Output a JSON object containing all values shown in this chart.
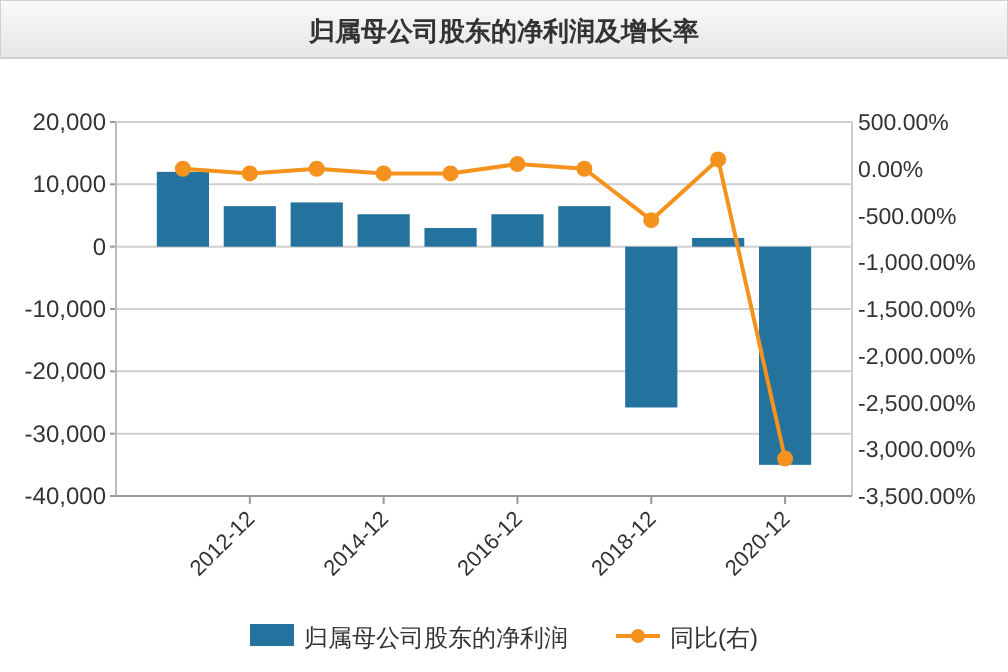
{
  "chart_data": {
    "type": "bar",
    "title": "归属母公司股东的净利润及增长率",
    "categories": [
      null,
      "2012-12",
      null,
      "2014-12",
      null,
      "2016-12",
      null,
      "2018-12",
      null,
      "2020-12"
    ],
    "series": [
      {
        "name": "归属母公司股东的净利润",
        "color": "#24739f",
        "values": [
          12000,
          6500,
          7100,
          5200,
          3000,
          5200,
          6500,
          -25800,
          1400,
          -35000
        ]
      },
      {
        "name": "同比(右)",
        "type": "line",
        "axis": "y2",
        "color": "#f5921e",
        "values": [
          0,
          -50,
          0,
          -50,
          -50,
          50,
          0,
          -550,
          100,
          -3100
        ]
      }
    ],
    "ylim": [
      -40000,
      20000
    ],
    "yticks": [
      {
        "value": 20000,
        "label": "20,000"
      },
      {
        "value": 10000,
        "label": "10,000"
      },
      0,
      {
        "value": -10000,
        "label": "-10,000"
      },
      {
        "value": -20000,
        "label": "-20,000"
      },
      {
        "value": -30000,
        "label": "-30,000"
      },
      {
        "value": -40000,
        "label": "-40,000"
      }
    ],
    "y2lim": [
      -3500,
      500
    ],
    "y2ticks": [
      {
        "value": 500,
        "label": "500.00%"
      },
      {
        "value": 0,
        "label": "0.00%"
      },
      {
        "value": -500,
        "label": "-500.00%"
      },
      {
        "value": -1000,
        "label": "-1,000.00%"
      },
      {
        "value": -1500,
        "label": "-1,500.00%"
      },
      {
        "value": -2000,
        "label": "-2,000.00%"
      },
      {
        "value": -2500,
        "label": "-2,500.00%"
      },
      {
        "value": -3000,
        "label": "-3,000.00%"
      },
      {
        "value": -3500,
        "label": "-3,500.00%"
      }
    ],
    "grid": "y",
    "legend": "bottom",
    "marker": "circle",
    "line_style": "solid"
  }
}
